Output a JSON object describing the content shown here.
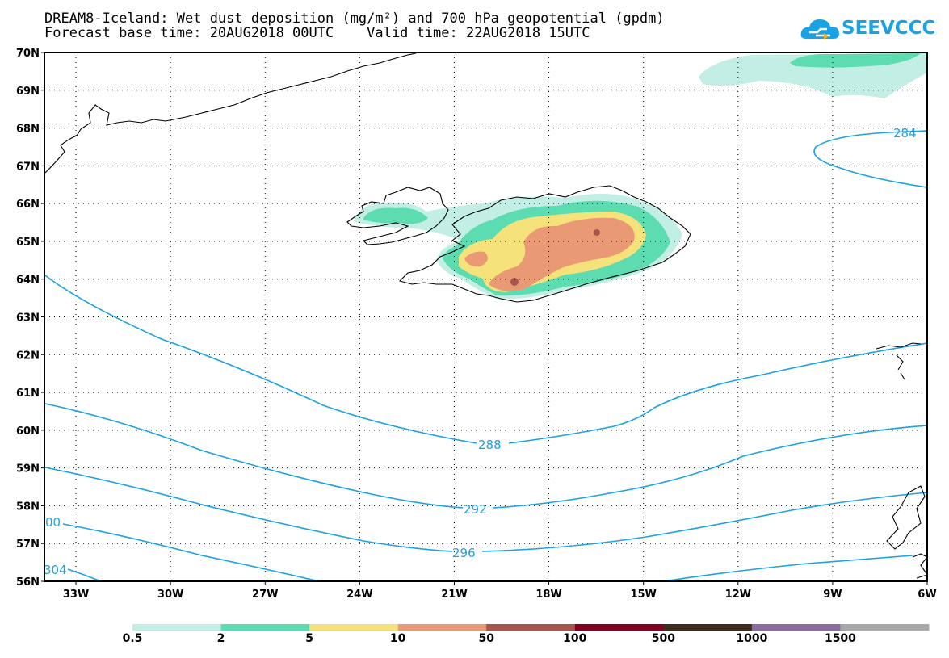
{
  "title": {
    "line1": "DREAM8-Iceland: Wet dust deposition (mg/m²) and 700 hPa geopotential (gpdm)",
    "line2": "Forecast base time: 20AUG2018 00UTC    Valid time: 22AUG2018 15UTC"
  },
  "logo": {
    "text": "SEEVCCC",
    "icon": "cloud-icon"
  },
  "map": {
    "lat_labels": [
      "70N",
      "69N",
      "68N",
      "67N",
      "66N",
      "65N",
      "64N",
      "63N",
      "62N",
      "61N",
      "60N",
      "59N",
      "58N",
      "57N",
      "56N"
    ],
    "lon_labels": [
      "33W",
      "30W",
      "27W",
      "24W",
      "21W",
      "18W",
      "15W",
      "12W",
      "9W",
      "6W"
    ],
    "lat_range": [
      56,
      70
    ],
    "lon_range": [
      -34,
      -6
    ],
    "grid": "dotted",
    "contour_labels": [
      "284",
      "288",
      "292",
      "296",
      "00",
      "304"
    ],
    "contour_color": "#1ba2e3",
    "region": "Iceland"
  },
  "colorbar": {
    "labels": [
      "0.5",
      "2",
      "5",
      "10",
      "50",
      "100",
      "500",
      "1000",
      "1500"
    ],
    "colors": [
      "#c3eee6",
      "#5ddcb1",
      "#f6e27a",
      "#e99a74",
      "#a8564b",
      "#850020",
      "#3f2a1b",
      "#8a6d9e",
      "#a8a8a8"
    ]
  }
}
